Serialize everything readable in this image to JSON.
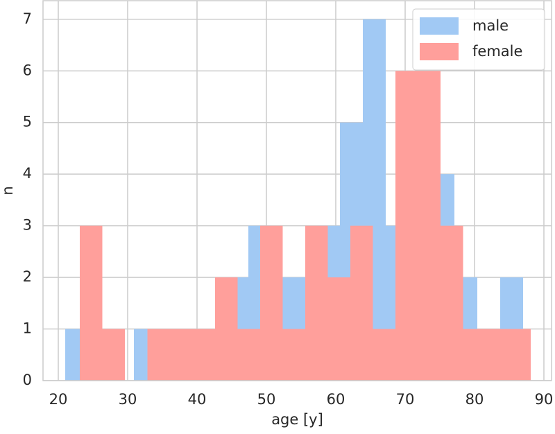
{
  "chart_data": {
    "type": "histogram",
    "x_label": "age [y]",
    "y_label": "n",
    "series": [
      {
        "name": "male",
        "color": "#a1c9f4",
        "bins": [
          21,
          24.3,
          27.6,
          30.9,
          34.2,
          37.5,
          40.8,
          44.1,
          47.4,
          50.7,
          54,
          57.3,
          60.6,
          63.9,
          67.2,
          70.5,
          73.8,
          77.1,
          80.4,
          83.7,
          87
        ],
        "values": [
          1,
          0,
          0,
          1,
          1,
          1,
          1,
          2,
          3,
          2,
          2,
          3,
          5,
          7,
          3,
          4,
          4,
          2,
          1,
          2
        ]
      },
      {
        "name": "female",
        "color": "#ff9f9b",
        "bins": [
          23.1,
          26.35,
          29.6,
          32.85,
          36.1,
          39.35,
          42.6,
          45.85,
          49.1,
          52.35,
          55.6,
          58.85,
          62.1,
          65.35,
          68.6,
          71.85,
          75.1,
          78.35,
          81.6,
          84.85,
          88.1
        ],
        "values": [
          3,
          1,
          0,
          1,
          1,
          1,
          2,
          1,
          3,
          1,
          3,
          2,
          3,
          1,
          6,
          6,
          3,
          1,
          1,
          1
        ]
      }
    ],
    "xlim": [
      17.8,
      91.1
    ],
    "xticks": [
      20,
      30,
      40,
      50,
      60,
      70,
      80,
      90
    ],
    "ylim": [
      0,
      7.36
    ],
    "yticks": [
      0,
      1,
      2,
      3,
      4,
      5,
      6,
      7
    ],
    "grid": true,
    "legend": "upper right"
  }
}
